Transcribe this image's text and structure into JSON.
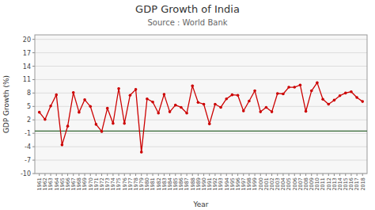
{
  "chart_data": {
    "type": "line",
    "title": "GDP Growth of India",
    "subtitle": "Source : World Bank",
    "x_label": "Year",
    "y_label": "GDP Growth (%)",
    "x": [
      1961,
      1962,
      1963,
      1964,
      1965,
      1966,
      1967,
      1968,
      1969,
      1970,
      1971,
      1972,
      1973,
      1974,
      1975,
      1976,
      1977,
      1978,
      1979,
      1980,
      1981,
      1982,
      1983,
      1984,
      1985,
      1986,
      1987,
      1988,
      1989,
      1990,
      1991,
      1992,
      1993,
      1994,
      1995,
      1996,
      1997,
      1998,
      1999,
      2000,
      2001,
      2002,
      2003,
      2004,
      2005,
      2006,
      2007,
      2008,
      2009,
      2010,
      2011,
      2012,
      2013,
      2014,
      2015,
      2016,
      2017,
      2018
    ],
    "values": [
      3.7,
      2.1,
      5.1,
      7.6,
      -3.6,
      0.6,
      8.1,
      3.7,
      6.5,
      5.0,
      1.0,
      -0.6,
      4.6,
      1.2,
      9.0,
      1.2,
      7.5,
      8.8,
      -5.2,
      6.7,
      6.0,
      3.5,
      7.7,
      3.8,
      5.3,
      4.8,
      3.5,
      9.6,
      5.9,
      5.5,
      1.1,
      5.5,
      4.8,
      6.7,
      7.6,
      7.5,
      4.0,
      6.2,
      8.5,
      3.8,
      4.8,
      3.8,
      7.9,
      7.8,
      9.3,
      9.3,
      9.8,
      3.9,
      8.5,
      10.3,
      6.6,
      5.5,
      6.4,
      7.4,
      8.0,
      8.3,
      7.0,
      6.1
    ],
    "color": "#cc0000",
    "marker": "circle",
    "line_style": "solid",
    "hline": {
      "value": -0.5,
      "color": "#336633"
    },
    "xlim": [
      1960.2,
      2018.8
    ],
    "xticks": [
      1961,
      1962,
      1963,
      1964,
      1965,
      1966,
      1967,
      1968,
      1969,
      1970,
      1971,
      1972,
      1973,
      1974,
      1975,
      1976,
      1977,
      1978,
      1979,
      1980,
      1981,
      1982,
      1983,
      1984,
      1985,
      1986,
      1987,
      1988,
      1989,
      1990,
      1991,
      1992,
      1993,
      1994,
      1995,
      1996,
      1997,
      1998,
      1999,
      2000,
      2001,
      2002,
      2003,
      2004,
      2005,
      2006,
      2007,
      2008,
      2009,
      2010,
      2011,
      2012,
      2013,
      2014,
      2015,
      2016,
      2017,
      2018
    ],
    "ylim": [
      -10,
      21
    ],
    "yticks": [
      -10,
      -7,
      -4,
      -1,
      2,
      5,
      8,
      11,
      14,
      17,
      20
    ],
    "grid": true
  }
}
